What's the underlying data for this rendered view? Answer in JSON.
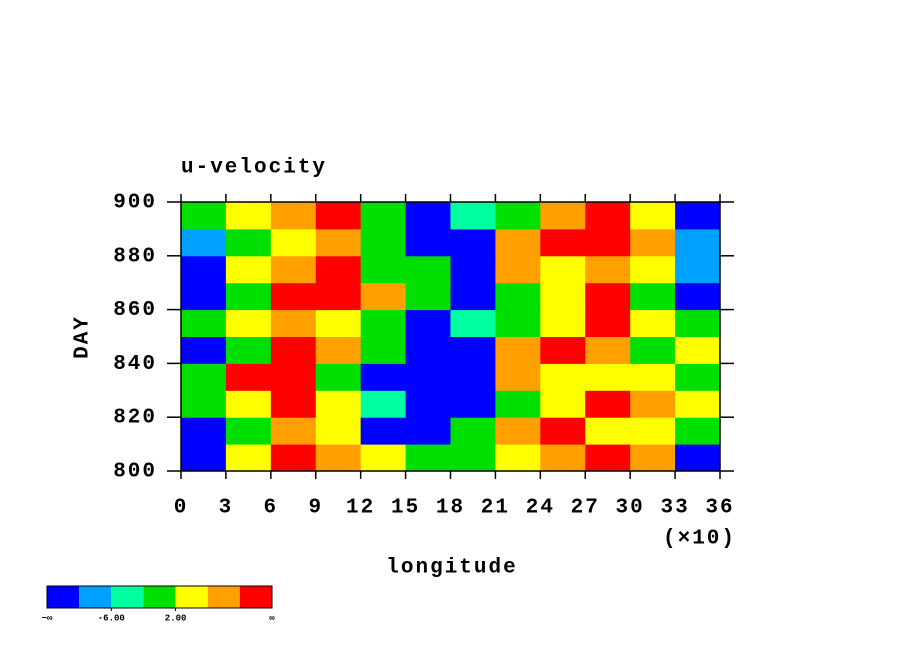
{
  "chart_data": {
    "type": "contour",
    "title": "u-velocity",
    "xlabel": "longitude",
    "xscale_label": "(×10)",
    "ylabel": "DAY",
    "xlim": [
      0,
      36
    ],
    "xticks": [
      0,
      3,
      6,
      9,
      12,
      15,
      18,
      21,
      24,
      27,
      30,
      33,
      36
    ],
    "ylim": [
      800,
      900
    ],
    "yticks": [
      800,
      820,
      840,
      860,
      880,
      900
    ],
    "x_edges": [
      0,
      3,
      6,
      9,
      12,
      15,
      18,
      21,
      24,
      27,
      30,
      33,
      36
    ],
    "y_edges": [
      800,
      810,
      820,
      830,
      840,
      850,
      860,
      870,
      880,
      890,
      900
    ],
    "levels": [
      -10,
      -6,
      -2,
      2,
      6,
      10
    ],
    "colors": [
      "#0000ff",
      "#00a0ff",
      "#00ffa0",
      "#00e000",
      "#ffff00",
      "#ffa000",
      "#ff0000"
    ],
    "z": [
      [
        -12,
        4,
        12,
        8,
        4,
        0,
        0,
        4,
        8,
        12,
        8,
        -12
      ],
      [
        -12,
        0,
        8,
        4,
        -12,
        -12,
        0,
        8,
        12,
        4,
        4,
        0
      ],
      [
        0,
        4,
        12,
        4,
        -4,
        -12,
        -12,
        0,
        4,
        12,
        8,
        4
      ],
      [
        0,
        12,
        12,
        0,
        -12,
        -12,
        -12,
        8,
        4,
        4,
        4,
        0
      ],
      [
        -12,
        0,
        12,
        8,
        0,
        -12,
        -12,
        8,
        12,
        8,
        0,
        4
      ],
      [
        0,
        4,
        8,
        4,
        0,
        -12,
        -4,
        0,
        4,
        12,
        4,
        0
      ],
      [
        -12,
        0,
        12,
        12,
        8,
        0,
        -12,
        0,
        4,
        12,
        0,
        -12
      ],
      [
        -12,
        4,
        8,
        12,
        0,
        0,
        -12,
        8,
        4,
        8,
        4,
        -8
      ],
      [
        -8,
        0,
        4,
        8,
        0,
        -12,
        -12,
        8,
        12,
        12,
        8,
        -8
      ],
      [
        0,
        4,
        8,
        12,
        0,
        -12,
        -4,
        0,
        8,
        12,
        4,
        -12
      ]
    ],
    "colorbar": {
      "ends": [
        "−∞",
        "∞"
      ],
      "ticks": [
        {
          "value": -6,
          "label": "-6.00"
        },
        {
          "value": 2,
          "label": "2.00"
        }
      ]
    }
  }
}
